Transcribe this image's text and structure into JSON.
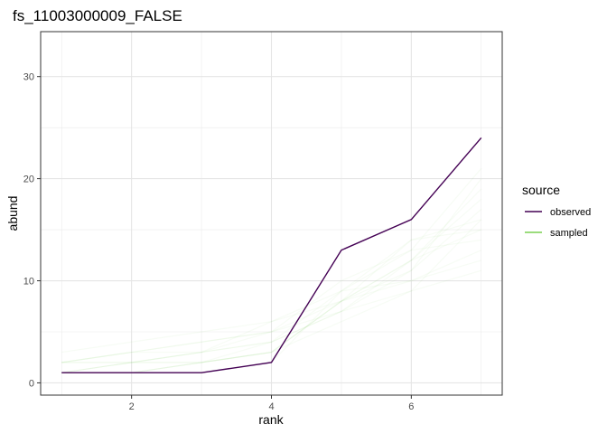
{
  "chart_data": {
    "type": "line",
    "title": "fs_11003000009_FALSE",
    "xlabel": "rank",
    "ylabel": "abund",
    "xlim": [
      0.7,
      7.3
    ],
    "ylim": [
      -1.2,
      34.4
    ],
    "x_ticks": [
      2,
      4,
      6
    ],
    "y_ticks": [
      0,
      10,
      20,
      30
    ],
    "grid": true,
    "legend": {
      "title": "source",
      "position": "right",
      "entries": [
        {
          "label": "observed",
          "color": "#440154"
        },
        {
          "label": "sampled",
          "color": "#7ad151"
        }
      ]
    },
    "x": [
      1,
      2,
      3,
      4,
      5,
      6,
      7
    ],
    "series": [
      {
        "name": "observed",
        "color": "#440154",
        "values": [
          1,
          1,
          1,
          2,
          13,
          16,
          24
        ]
      }
    ],
    "sampled_series": {
      "name": "sampled",
      "color": "#7ad151",
      "opacity": 0.06,
      "lines": [
        [
          1,
          1,
          1,
          2,
          9,
          13,
          21
        ],
        [
          1,
          2,
          2,
          3,
          8,
          12,
          19
        ],
        [
          2,
          2,
          3,
          4,
          7,
          11,
          17
        ],
        [
          1,
          1,
          2,
          4,
          9,
          14,
          16
        ],
        [
          2,
          3,
          4,
          5,
          8,
          12,
          15
        ],
        [
          1,
          2,
          3,
          5,
          10,
          13,
          14
        ],
        [
          2,
          2,
          3,
          6,
          9,
          10,
          13
        ],
        [
          1,
          1,
          2,
          3,
          6,
          9,
          16
        ],
        [
          2,
          3,
          3,
          4,
          7,
          12,
          18
        ],
        [
          1,
          2,
          2,
          3,
          8,
          11,
          20
        ],
        [
          3,
          4,
          5,
          6,
          8,
          10,
          12
        ],
        [
          2,
          3,
          4,
          5,
          7,
          9,
          11
        ],
        [
          1,
          1,
          2,
          3,
          8,
          14,
          15
        ]
      ]
    }
  }
}
